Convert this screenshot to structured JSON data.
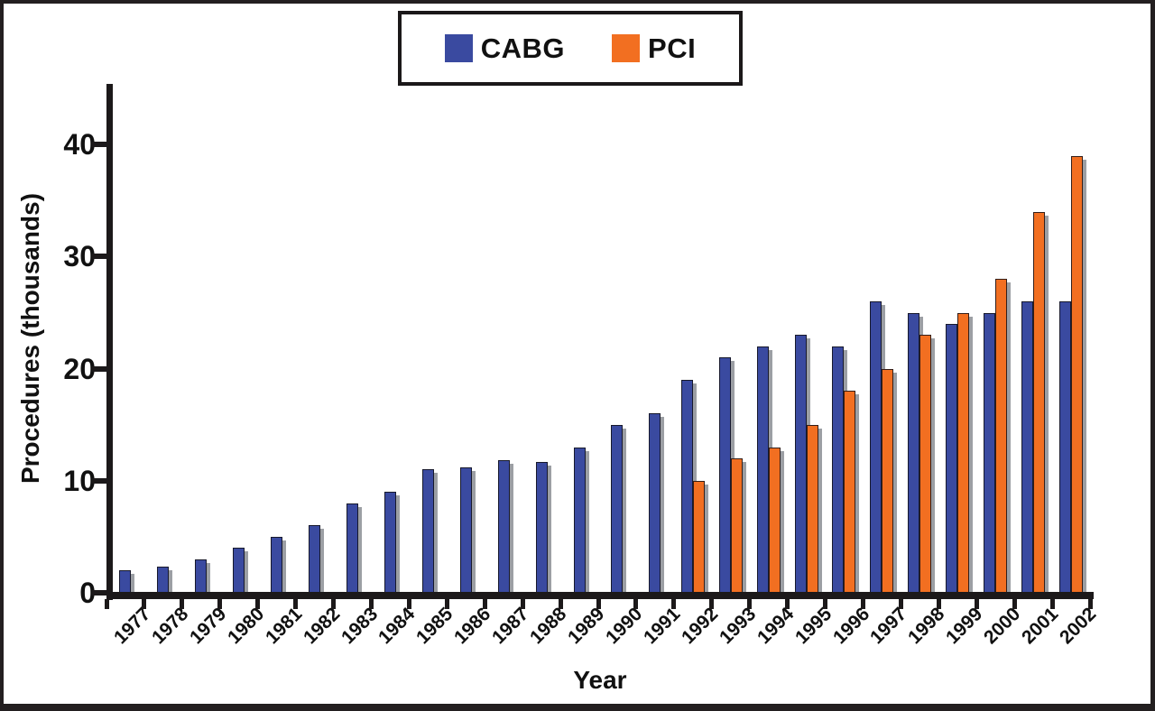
{
  "legend": {
    "items": [
      {
        "label": "CABG"
      },
      {
        "label": "PCI"
      }
    ]
  },
  "colors": {
    "cabg": "#3A4AA0",
    "pci": "#F26F21",
    "axis": "#1C191A",
    "shadow": "#9C9FA4",
    "frame": "#231F20",
    "background": "#FFFFFF"
  },
  "chart_data": {
    "type": "bar",
    "title": "",
    "xlabel": "Year",
    "ylabel": "Procedures (thousands)",
    "ylim": [
      0,
      45
    ],
    "yticks": [
      0,
      10,
      20,
      30,
      40
    ],
    "grid": false,
    "legend_position": "top-center",
    "categories": [
      "1977",
      "1978",
      "1979",
      "1980",
      "1981",
      "1982",
      "1983",
      "1984",
      "1985",
      "1986",
      "1987",
      "1988",
      "1989",
      "1990",
      "1991",
      "1992",
      "1993",
      "1994",
      "1995",
      "1996",
      "1997",
      "1998",
      "1999",
      "2000",
      "2001",
      "2002"
    ],
    "series": [
      {
        "name": "CABG",
        "color": "#3A4AA0",
        "values": [
          2,
          2.3,
          3,
          4,
          5,
          6,
          8,
          9,
          11,
          11.2,
          11.8,
          11.7,
          13,
          15,
          16,
          19,
          21,
          22,
          23,
          22,
          26,
          25,
          24,
          25,
          26,
          26
        ]
      },
      {
        "name": "PCI",
        "color": "#F26F21",
        "values": [
          null,
          null,
          null,
          null,
          null,
          null,
          null,
          null,
          null,
          null,
          null,
          null,
          null,
          null,
          null,
          10,
          12,
          13,
          15,
          18,
          20,
          23,
          25,
          28,
          34,
          39
        ]
      }
    ]
  }
}
